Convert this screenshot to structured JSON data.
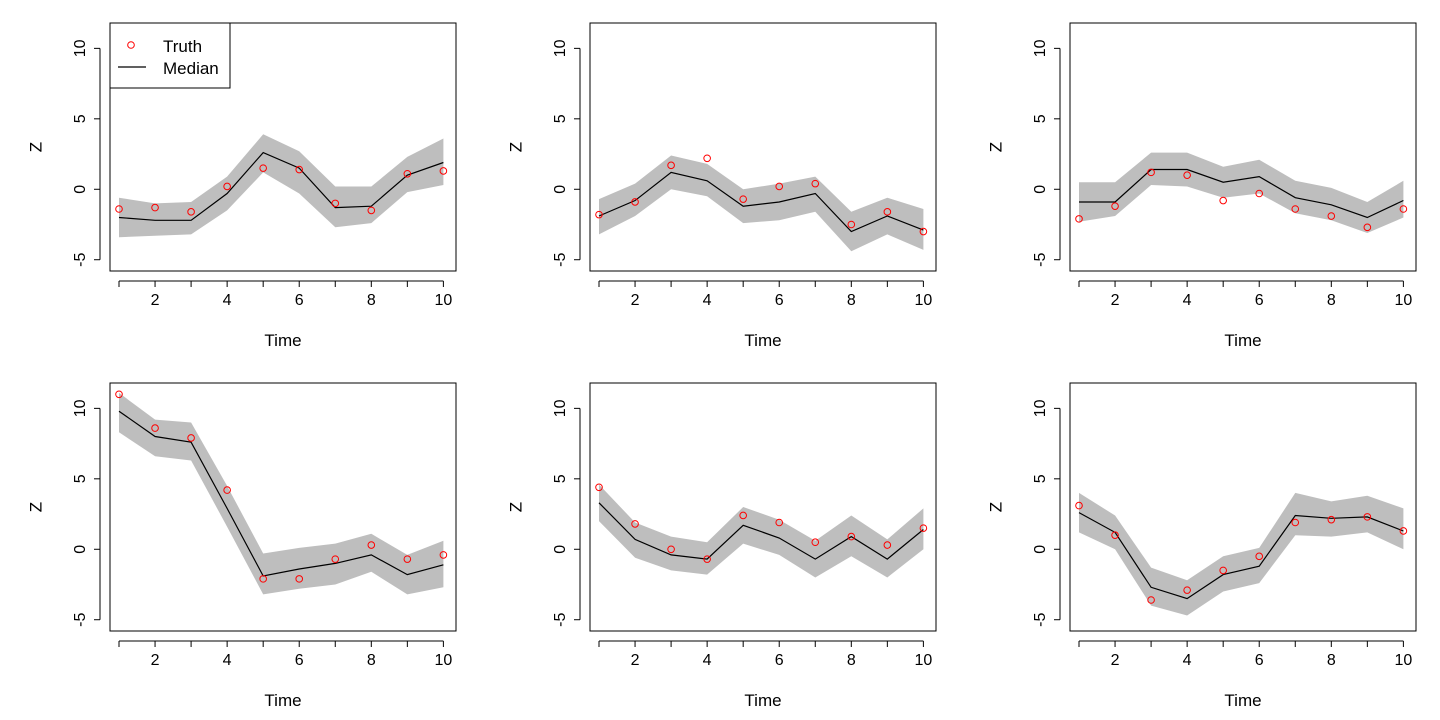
{
  "chart_data": [
    {
      "type": "line",
      "xlabel": "Time",
      "ylabel": "Z",
      "xlim": [
        0.75,
        10.35
      ],
      "ylim": [
        -5.8,
        11.8
      ],
      "xticks": [
        2,
        4,
        6,
        8,
        10
      ],
      "yticks": [
        -5,
        0,
        5,
        10
      ],
      "x": [
        1,
        2,
        3,
        4,
        5,
        6,
        7,
        8,
        9,
        10
      ],
      "median": [
        -2.0,
        -2.2,
        -2.2,
        -0.3,
        2.6,
        1.5,
        -1.3,
        -1.2,
        1.0,
        1.9
      ],
      "lower": [
        -3.4,
        -3.3,
        -3.2,
        -1.5,
        1.2,
        -0.3,
        -2.7,
        -2.4,
        -0.2,
        0.3
      ],
      "upper": [
        -0.6,
        -1.0,
        -0.9,
        0.9,
        3.9,
        2.7,
        0.2,
        0.2,
        2.3,
        3.6
      ],
      "truth": [
        -1.4,
        -1.3,
        -1.6,
        0.2,
        1.5,
        1.4,
        -1.0,
        -1.5,
        1.1,
        1.3
      ],
      "legend": {
        "position": "top-left",
        "entries": [
          "Truth",
          "Median"
        ]
      }
    },
    {
      "type": "line",
      "xlabel": "Time",
      "ylabel": "Z",
      "xlim": [
        0.75,
        10.35
      ],
      "ylim": [
        -5.8,
        11.8
      ],
      "xticks": [
        2,
        4,
        6,
        8,
        10
      ],
      "yticks": [
        -5,
        0,
        5,
        10
      ],
      "x": [
        1,
        2,
        3,
        4,
        5,
        6,
        7,
        8,
        9,
        10
      ],
      "median": [
        -1.9,
        -0.8,
        1.2,
        0.6,
        -1.2,
        -0.9,
        -0.3,
        -3.0,
        -1.9,
        -2.9
      ],
      "lower": [
        -3.2,
        -1.9,
        0.0,
        -0.5,
        -2.4,
        -2.2,
        -1.6,
        -4.4,
        -3.2,
        -4.3
      ],
      "upper": [
        -0.7,
        0.4,
        2.4,
        1.8,
        0.0,
        0.4,
        0.9,
        -1.6,
        -0.6,
        -1.4
      ],
      "truth": [
        -1.8,
        -0.9,
        1.7,
        2.2,
        -0.7,
        0.2,
        0.4,
        -2.5,
        -1.6,
        -3.0
      ]
    },
    {
      "type": "line",
      "xlabel": "Time",
      "ylabel": "Z",
      "xlim": [
        0.75,
        10.35
      ],
      "ylim": [
        -5.8,
        11.8
      ],
      "xticks": [
        2,
        4,
        6,
        8,
        10
      ],
      "yticks": [
        -5,
        0,
        5,
        10
      ],
      "x": [
        1,
        2,
        3,
        4,
        5,
        6,
        7,
        8,
        9,
        10
      ],
      "median": [
        -0.9,
        -0.9,
        1.4,
        1.4,
        0.5,
        0.9,
        -0.6,
        -1.1,
        -2.0,
        -0.8
      ],
      "lower": [
        -2.3,
        -1.9,
        0.3,
        0.2,
        -0.6,
        -0.3,
        -1.7,
        -2.2,
        -3.1,
        -2.0
      ],
      "upper": [
        0.5,
        0.5,
        2.6,
        2.6,
        1.6,
        2.1,
        0.6,
        0.1,
        -0.9,
        0.6
      ],
      "truth": [
        -2.1,
        -1.2,
        1.2,
        1.0,
        -0.8,
        -0.3,
        -1.4,
        -1.9,
        -2.7,
        -1.4
      ]
    },
    {
      "type": "line",
      "xlabel": "Time",
      "ylabel": "Z",
      "xlim": [
        0.75,
        10.35
      ],
      "ylim": [
        -5.8,
        11.8
      ],
      "xticks": [
        2,
        4,
        6,
        8,
        10
      ],
      "yticks": [
        -5,
        0,
        5,
        10
      ],
      "x": [
        1,
        2,
        3,
        4,
        5,
        6,
        7,
        8,
        9,
        10
      ],
      "median": [
        9.8,
        8.0,
        7.6,
        2.9,
        -1.9,
        -1.4,
        -1.0,
        -0.4,
        -1.8,
        -1.1
      ],
      "lower": [
        8.3,
        6.6,
        6.3,
        1.6,
        -3.2,
        -2.8,
        -2.5,
        -1.6,
        -3.2,
        -2.7
      ],
      "upper": [
        11.1,
        9.2,
        9.0,
        4.5,
        -0.3,
        0.1,
        0.4,
        1.1,
        -0.4,
        0.6
      ],
      "truth": [
        11.0,
        8.6,
        7.9,
        4.2,
        -2.1,
        -2.1,
        -0.7,
        0.3,
        -0.7,
        -0.4
      ]
    },
    {
      "type": "line",
      "xlabel": "Time",
      "ylabel": "Z",
      "xlim": [
        0.75,
        10.35
      ],
      "ylim": [
        -5.8,
        11.8
      ],
      "xticks": [
        2,
        4,
        6,
        8,
        10
      ],
      "yticks": [
        -5,
        0,
        5,
        10
      ],
      "x": [
        1,
        2,
        3,
        4,
        5,
        6,
        7,
        8,
        9,
        10
      ],
      "median": [
        3.3,
        0.7,
        -0.4,
        -0.7,
        1.7,
        0.8,
        -0.7,
        0.9,
        -0.7,
        1.4
      ],
      "lower": [
        2.0,
        -0.6,
        -1.5,
        -1.8,
        0.4,
        -0.4,
        -2.0,
        -0.5,
        -2.0,
        0.0
      ],
      "upper": [
        4.6,
        1.9,
        0.9,
        0.5,
        3.0,
        2.1,
        0.6,
        2.4,
        0.7,
        2.9
      ],
      "truth": [
        4.4,
        1.8,
        0.0,
        -0.7,
        2.4,
        1.9,
        0.5,
        0.9,
        0.3,
        1.5
      ]
    },
    {
      "type": "line",
      "xlabel": "Time",
      "ylabel": "Z",
      "xlim": [
        0.75,
        10.35
      ],
      "ylim": [
        -5.8,
        11.8
      ],
      "xticks": [
        2,
        4,
        6,
        8,
        10
      ],
      "yticks": [
        -5,
        0,
        5,
        10
      ],
      "x": [
        1,
        2,
        3,
        4,
        5,
        6,
        7,
        8,
        9,
        10
      ],
      "median": [
        2.6,
        1.2,
        -2.7,
        -3.5,
        -1.8,
        -1.2,
        2.4,
        2.2,
        2.3,
        1.3
      ],
      "lower": [
        1.2,
        0.0,
        -4.0,
        -4.7,
        -3.0,
        -2.4,
        1.0,
        0.9,
        1.2,
        0.0
      ],
      "upper": [
        4.0,
        2.4,
        -1.3,
        -2.2,
        -0.5,
        0.1,
        4.0,
        3.4,
        3.8,
        2.9
      ],
      "truth": [
        3.1,
        1.0,
        -3.6,
        -2.9,
        -1.5,
        -0.5,
        1.9,
        2.1,
        2.3,
        1.3
      ]
    }
  ]
}
